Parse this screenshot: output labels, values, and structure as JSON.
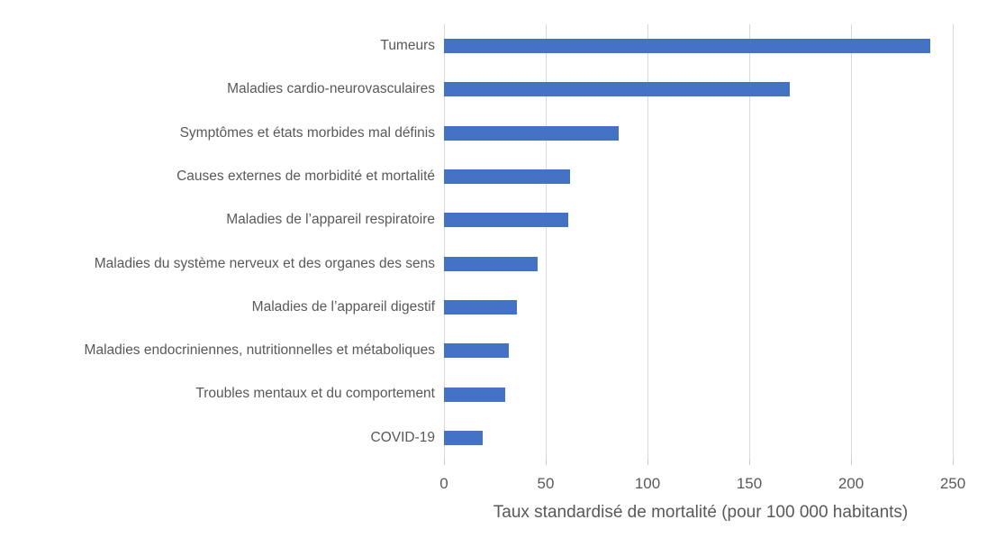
{
  "chart_data": {
    "type": "bar",
    "orientation": "horizontal",
    "title": "",
    "xlabel": "Taux standardisé de mortalité (pour 100 000 habitants)",
    "ylabel": "",
    "categories": [
      "Tumeurs",
      "Maladies cardio-neurovasculaires",
      "Symptômes et états morbides mal définis",
      "Causes externes de morbidité et mortalité",
      "Maladies de l’appareil respiratoire",
      "Maladies du système nerveux et des organes des sens",
      "Maladies de l’appareil digestif",
      "Maladies endocriniennes, nutritionnelles et métaboliques",
      "Troubles mentaux et du comportement",
      "COVID-19"
    ],
    "values": [
      239,
      170,
      86,
      62,
      61,
      46,
      36,
      32,
      30,
      19
    ],
    "xlim": [
      0,
      250
    ],
    "xticks": [
      0,
      50,
      100,
      150,
      200,
      250
    ],
    "grid": "vertical-only",
    "legend": "none",
    "bar_color": "#4472c4",
    "gridline_color": "#d9d9d9",
    "text_color": "#595959"
  }
}
